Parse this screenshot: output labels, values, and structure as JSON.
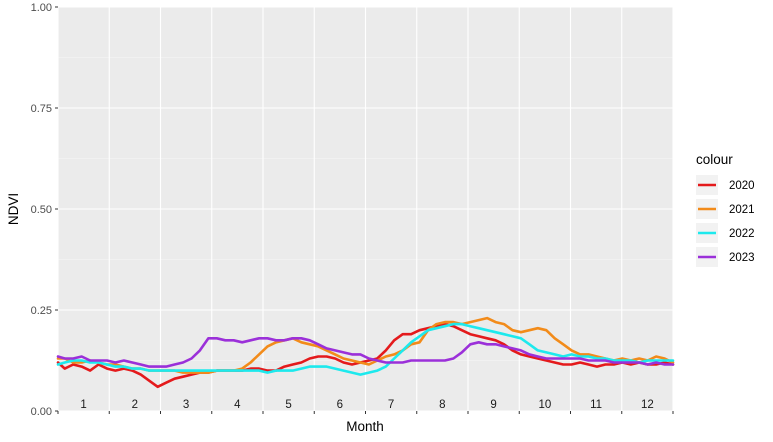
{
  "chart_data": {
    "type": "line",
    "xlabel": "Month",
    "ylabel": "NDVI",
    "ylim": [
      0,
      1
    ],
    "xlim": [
      1,
      365
    ],
    "y_ticks": [
      "0.00",
      "0.25",
      "0.50",
      "0.75",
      "1.00"
    ],
    "y_tick_values": [
      0,
      0.25,
      0.5,
      0.75,
      1.0
    ],
    "month_labels": [
      "1",
      "2",
      "3",
      "4",
      "5",
      "6",
      "7",
      "8",
      "9",
      "10",
      "11",
      "12"
    ],
    "grid": true,
    "legend": {
      "title": "colour",
      "placement": "right"
    },
    "series": [
      {
        "name": "2020",
        "color": "#e41a1c",
        "points": [
          [
            1,
            0.12
          ],
          [
            5,
            0.105
          ],
          [
            10,
            0.115
          ],
          [
            15,
            0.11
          ],
          [
            20,
            0.1
          ],
          [
            25,
            0.115
          ],
          [
            30,
            0.105
          ],
          [
            35,
            0.1
          ],
          [
            40,
            0.105
          ],
          [
            45,
            0.1
          ],
          [
            50,
            0.09
          ],
          [
            55,
            0.075
          ],
          [
            60,
            0.06
          ],
          [
            65,
            0.07
          ],
          [
            70,
            0.08
          ],
          [
            75,
            0.085
          ],
          [
            80,
            0.09
          ],
          [
            85,
            0.095
          ],
          [
            90,
            0.095
          ],
          [
            95,
            0.1
          ],
          [
            100,
            0.1
          ],
          [
            105,
            0.1
          ],
          [
            110,
            0.1
          ],
          [
            115,
            0.105
          ],
          [
            120,
            0.105
          ],
          [
            125,
            0.1
          ],
          [
            130,
            0.1
          ],
          [
            135,
            0.11
          ],
          [
            140,
            0.115
          ],
          [
            145,
            0.12
          ],
          [
            150,
            0.13
          ],
          [
            155,
            0.135
          ],
          [
            160,
            0.135
          ],
          [
            165,
            0.13
          ],
          [
            170,
            0.12
          ],
          [
            175,
            0.115
          ],
          [
            180,
            0.12
          ],
          [
            185,
            0.125
          ],
          [
            190,
            0.13
          ],
          [
            195,
            0.15
          ],
          [
            200,
            0.175
          ],
          [
            205,
            0.19
          ],
          [
            210,
            0.19
          ],
          [
            215,
            0.2
          ],
          [
            220,
            0.205
          ],
          [
            225,
            0.21
          ],
          [
            230,
            0.215
          ],
          [
            235,
            0.21
          ],
          [
            240,
            0.2
          ],
          [
            245,
            0.19
          ],
          [
            250,
            0.185
          ],
          [
            255,
            0.18
          ],
          [
            260,
            0.175
          ],
          [
            265,
            0.165
          ],
          [
            270,
            0.15
          ],
          [
            275,
            0.14
          ],
          [
            280,
            0.135
          ],
          [
            285,
            0.13
          ],
          [
            290,
            0.125
          ],
          [
            295,
            0.12
          ],
          [
            300,
            0.115
          ],
          [
            305,
            0.115
          ],
          [
            310,
            0.12
          ],
          [
            315,
            0.115
          ],
          [
            320,
            0.11
          ],
          [
            325,
            0.115
          ],
          [
            330,
            0.115
          ],
          [
            335,
            0.12
          ],
          [
            340,
            0.115
          ],
          [
            345,
            0.12
          ],
          [
            350,
            0.115
          ],
          [
            355,
            0.115
          ],
          [
            360,
            0.12
          ],
          [
            365,
            0.115
          ]
        ]
      },
      {
        "name": "2021",
        "color": "#f28b1a",
        "points": [
          [
            1,
            0.13
          ],
          [
            5,
            0.13
          ],
          [
            10,
            0.12
          ],
          [
            15,
            0.12
          ],
          [
            20,
            0.125
          ],
          [
            25,
            0.12
          ],
          [
            30,
            0.115
          ],
          [
            35,
            0.115
          ],
          [
            40,
            0.11
          ],
          [
            45,
            0.105
          ],
          [
            50,
            0.105
          ],
          [
            55,
            0.1
          ],
          [
            60,
            0.1
          ],
          [
            65,
            0.1
          ],
          [
            70,
            0.1
          ],
          [
            75,
            0.095
          ],
          [
            80,
            0.095
          ],
          [
            85,
            0.095
          ],
          [
            90,
            0.095
          ],
          [
            95,
            0.1
          ],
          [
            100,
            0.1
          ],
          [
            105,
            0.1
          ],
          [
            110,
            0.105
          ],
          [
            115,
            0.12
          ],
          [
            120,
            0.14
          ],
          [
            125,
            0.16
          ],
          [
            130,
            0.17
          ],
          [
            135,
            0.175
          ],
          [
            140,
            0.18
          ],
          [
            145,
            0.17
          ],
          [
            150,
            0.165
          ],
          [
            155,
            0.16
          ],
          [
            160,
            0.15
          ],
          [
            165,
            0.14
          ],
          [
            170,
            0.13
          ],
          [
            175,
            0.125
          ],
          [
            180,
            0.12
          ],
          [
            185,
            0.115
          ],
          [
            190,
            0.125
          ],
          [
            195,
            0.135
          ],
          [
            200,
            0.14
          ],
          [
            205,
            0.15
          ],
          [
            210,
            0.165
          ],
          [
            215,
            0.17
          ],
          [
            220,
            0.2
          ],
          [
            225,
            0.215
          ],
          [
            230,
            0.22
          ],
          [
            235,
            0.22
          ],
          [
            240,
            0.215
          ],
          [
            245,
            0.22
          ],
          [
            250,
            0.225
          ],
          [
            255,
            0.23
          ],
          [
            260,
            0.22
          ],
          [
            265,
            0.215
          ],
          [
            270,
            0.2
          ],
          [
            275,
            0.195
          ],
          [
            280,
            0.2
          ],
          [
            285,
            0.205
          ],
          [
            290,
            0.2
          ],
          [
            295,
            0.18
          ],
          [
            300,
            0.165
          ],
          [
            305,
            0.15
          ],
          [
            310,
            0.14
          ],
          [
            315,
            0.14
          ],
          [
            320,
            0.135
          ],
          [
            325,
            0.13
          ],
          [
            330,
            0.125
          ],
          [
            335,
            0.13
          ],
          [
            340,
            0.125
          ],
          [
            345,
            0.13
          ],
          [
            350,
            0.125
          ],
          [
            355,
            0.135
          ],
          [
            360,
            0.13
          ],
          [
            365,
            0.12
          ]
        ]
      },
      {
        "name": "2022",
        "color": "#1de9ed",
        "points": [
          [
            1,
            0.115
          ],
          [
            5,
            0.12
          ],
          [
            10,
            0.125
          ],
          [
            15,
            0.125
          ],
          [
            20,
            0.12
          ],
          [
            25,
            0.12
          ],
          [
            30,
            0.115
          ],
          [
            35,
            0.11
          ],
          [
            40,
            0.11
          ],
          [
            45,
            0.105
          ],
          [
            50,
            0.105
          ],
          [
            55,
            0.1
          ],
          [
            60,
            0.1
          ],
          [
            65,
            0.1
          ],
          [
            70,
            0.1
          ],
          [
            75,
            0.1
          ],
          [
            80,
            0.1
          ],
          [
            85,
            0.1
          ],
          [
            90,
            0.1
          ],
          [
            95,
            0.1
          ],
          [
            100,
            0.1
          ],
          [
            105,
            0.1
          ],
          [
            110,
            0.1
          ],
          [
            115,
            0.1
          ],
          [
            120,
            0.1
          ],
          [
            125,
            0.095
          ],
          [
            130,
            0.1
          ],
          [
            135,
            0.1
          ],
          [
            140,
            0.1
          ],
          [
            145,
            0.105
          ],
          [
            150,
            0.11
          ],
          [
            155,
            0.11
          ],
          [
            160,
            0.11
          ],
          [
            165,
            0.105
          ],
          [
            170,
            0.1
          ],
          [
            175,
            0.095
          ],
          [
            180,
            0.09
          ],
          [
            185,
            0.095
          ],
          [
            190,
            0.1
          ],
          [
            195,
            0.11
          ],
          [
            200,
            0.13
          ],
          [
            205,
            0.15
          ],
          [
            210,
            0.17
          ],
          [
            215,
            0.185
          ],
          [
            220,
            0.2
          ],
          [
            225,
            0.205
          ],
          [
            230,
            0.21
          ],
          [
            235,
            0.215
          ],
          [
            240,
            0.215
          ],
          [
            245,
            0.21
          ],
          [
            250,
            0.205
          ],
          [
            255,
            0.2
          ],
          [
            260,
            0.195
          ],
          [
            265,
            0.19
          ],
          [
            270,
            0.185
          ],
          [
            275,
            0.18
          ],
          [
            280,
            0.165
          ],
          [
            285,
            0.15
          ],
          [
            290,
            0.145
          ],
          [
            295,
            0.14
          ],
          [
            300,
            0.135
          ],
          [
            305,
            0.14
          ],
          [
            310,
            0.135
          ],
          [
            315,
            0.135
          ],
          [
            320,
            0.13
          ],
          [
            325,
            0.13
          ],
          [
            330,
            0.125
          ],
          [
            335,
            0.125
          ],
          [
            340,
            0.125
          ],
          [
            345,
            0.12
          ],
          [
            350,
            0.125
          ],
          [
            355,
            0.125
          ],
          [
            360,
            0.125
          ],
          [
            365,
            0.125
          ]
        ]
      },
      {
        "name": "2023",
        "color": "#9b30d9",
        "points": [
          [
            1,
            0.135
          ],
          [
            5,
            0.13
          ],
          [
            10,
            0.13
          ],
          [
            15,
            0.135
          ],
          [
            20,
            0.125
          ],
          [
            25,
            0.125
          ],
          [
            30,
            0.125
          ],
          [
            35,
            0.12
          ],
          [
            40,
            0.125
          ],
          [
            45,
            0.12
          ],
          [
            50,
            0.115
          ],
          [
            55,
            0.11
          ],
          [
            60,
            0.11
          ],
          [
            65,
            0.11
          ],
          [
            70,
            0.115
          ],
          [
            75,
            0.12
          ],
          [
            80,
            0.13
          ],
          [
            85,
            0.15
          ],
          [
            90,
            0.18
          ],
          [
            95,
            0.18
          ],
          [
            100,
            0.175
          ],
          [
            105,
            0.175
          ],
          [
            110,
            0.17
          ],
          [
            115,
            0.175
          ],
          [
            120,
            0.18
          ],
          [
            125,
            0.18
          ],
          [
            130,
            0.175
          ],
          [
            135,
            0.175
          ],
          [
            140,
            0.18
          ],
          [
            145,
            0.18
          ],
          [
            150,
            0.175
          ],
          [
            155,
            0.165
          ],
          [
            160,
            0.155
          ],
          [
            165,
            0.15
          ],
          [
            170,
            0.145
          ],
          [
            175,
            0.14
          ],
          [
            180,
            0.14
          ],
          [
            185,
            0.13
          ],
          [
            190,
            0.125
          ],
          [
            195,
            0.12
          ],
          [
            200,
            0.12
          ],
          [
            205,
            0.12
          ],
          [
            210,
            0.125
          ],
          [
            215,
            0.125
          ],
          [
            220,
            0.125
          ],
          [
            225,
            0.125
          ],
          [
            230,
            0.125
          ],
          [
            235,
            0.13
          ],
          [
            240,
            0.145
          ],
          [
            245,
            0.165
          ],
          [
            250,
            0.17
          ],
          [
            255,
            0.165
          ],
          [
            260,
            0.165
          ],
          [
            265,
            0.16
          ],
          [
            270,
            0.155
          ],
          [
            275,
            0.15
          ],
          [
            280,
            0.14
          ],
          [
            285,
            0.135
          ],
          [
            290,
            0.13
          ],
          [
            295,
            0.13
          ],
          [
            300,
            0.13
          ],
          [
            305,
            0.13
          ],
          [
            310,
            0.13
          ],
          [
            315,
            0.125
          ],
          [
            320,
            0.125
          ],
          [
            325,
            0.125
          ],
          [
            330,
            0.12
          ],
          [
            335,
            0.12
          ],
          [
            340,
            0.12
          ],
          [
            345,
            0.12
          ],
          [
            350,
            0.115
          ],
          [
            355,
            0.12
          ],
          [
            360,
            0.115
          ],
          [
            365,
            0.115
          ]
        ]
      }
    ]
  }
}
